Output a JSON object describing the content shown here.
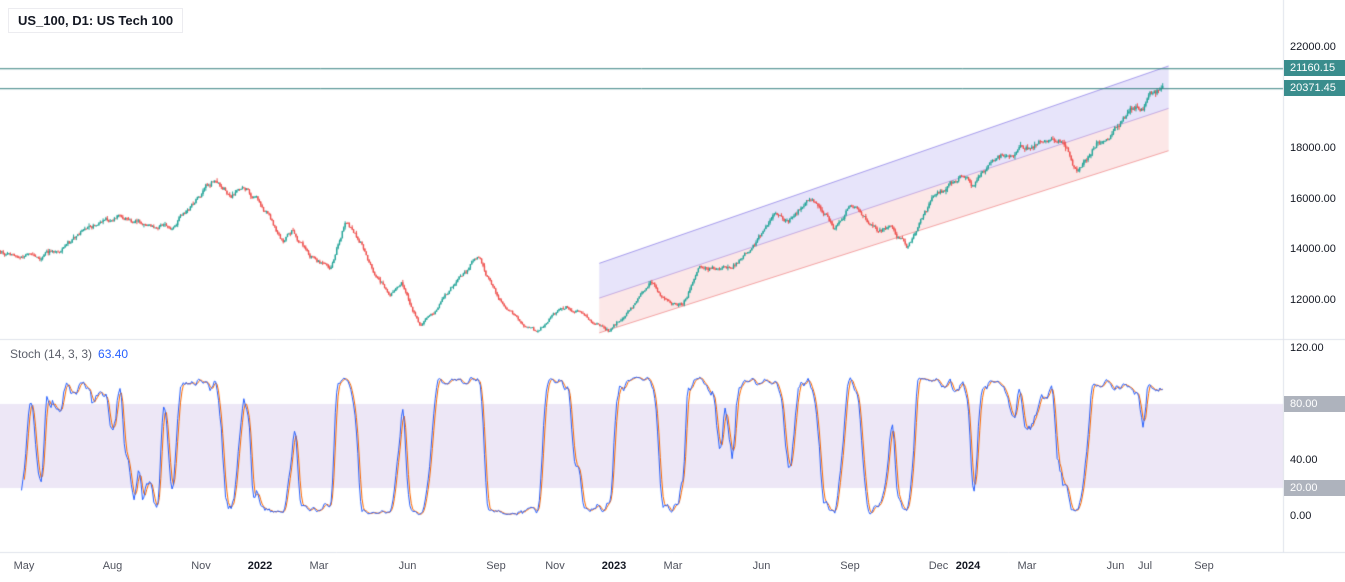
{
  "legend": {
    "title": "US_100, D1: US Tech 100"
  },
  "stoch_legend": {
    "label": "Stoch (14, 3, 3)",
    "value": "63.40"
  },
  "colors": {
    "background": "#ffffff",
    "up_candle": "#26a69a",
    "down_candle": "#ef5350",
    "hline": "#35807f",
    "hline_badge_bg": "#3a8d8d",
    "gray_badge_bg": "#aeb3bd",
    "channel_upper_fill": "rgba(106,90,224,0.16)",
    "channel_lower_fill": "rgba(233,88,88,0.14)",
    "channel_upper_line": "rgba(106,90,224,0.55)",
    "channel_lower_line": "rgba(233,88,88,0.50)",
    "channel_median_line": "rgba(140,100,210,0.45)",
    "stoch_k": "#2962ff",
    "stoch_d": "#ff6d00",
    "stoch_band": "rgba(126,87,194,0.14)",
    "stoch_value_color": "#2962ff",
    "separator": "#e0e3eb",
    "axis_text": "#131722"
  },
  "chart_data": {
    "type": "candlestick",
    "title": "US_100, D1: US Tech 100",
    "symbol": "US_100",
    "interval": "D1",
    "market": "US Tech 100",
    "grid": "off",
    "legend_position": "top-left",
    "price_axis": {
      "visible_range": [
        10400,
        23850
      ],
      "ticks": [
        {
          "value": 22000,
          "label": "22000.00"
        },
        {
          "value": 18000,
          "label": "18000.00"
        },
        {
          "value": 16000,
          "label": "16000.00"
        },
        {
          "value": 14000,
          "label": "14000.00"
        },
        {
          "value": 12000,
          "label": "12000.00"
        }
      ]
    },
    "horizontal_lines": [
      {
        "value": 21160.15,
        "label": "21160.15"
      },
      {
        "value": 20371.45,
        "label": "20371.45"
      }
    ],
    "time_axis": {
      "m_unit": "months since 2021-05",
      "ticks": [
        {
          "label": "May",
          "m": 0
        },
        {
          "label": "Aug",
          "m": 3
        },
        {
          "label": "Nov",
          "m": 6
        },
        {
          "label": "2022",
          "m": 8,
          "year": true
        },
        {
          "label": "Mar",
          "m": 10
        },
        {
          "label": "Jun",
          "m": 13
        },
        {
          "label": "Sep",
          "m": 16
        },
        {
          "label": "Nov",
          "m": 18
        },
        {
          "label": "2023",
          "m": 20,
          "year": true
        },
        {
          "label": "Mar",
          "m": 22
        },
        {
          "label": "Jun",
          "m": 25
        },
        {
          "label": "Sep",
          "m": 28
        },
        {
          "label": "Dec",
          "m": 31
        },
        {
          "label": "2024",
          "m": 32,
          "year": true
        },
        {
          "label": "Mar",
          "m": 34
        },
        {
          "label": "Jun",
          "m": 37
        },
        {
          "label": "Jul",
          "m": 38
        },
        {
          "label": "Sep",
          "m": 40
        }
      ]
    },
    "price_path_anchors": [
      [
        -0.8,
        13950
      ],
      [
        0,
        13550
      ],
      [
        0.7,
        13750
      ],
      [
        1.5,
        14250
      ],
      [
        2.5,
        15000
      ],
      [
        3.3,
        15350
      ],
      [
        4.4,
        14780
      ],
      [
        5,
        14900
      ],
      [
        5.8,
        15850
      ],
      [
        6.4,
        16720
      ],
      [
        7,
        16150
      ],
      [
        7.6,
        16350
      ],
      [
        8.3,
        15400
      ],
      [
        8.8,
        14260
      ],
      [
        9.1,
        14700
      ],
      [
        9.7,
        13750
      ],
      [
        10.4,
        13250
      ],
      [
        10.9,
        15150
      ],
      [
        11.4,
        14400
      ],
      [
        11.9,
        12900
      ],
      [
        12.4,
        12250
      ],
      [
        12.8,
        12700
      ],
      [
        13.4,
        11100
      ],
      [
        13.9,
        11500
      ],
      [
        14.8,
        12900
      ],
      [
        15.4,
        13700
      ],
      [
        15.9,
        12480
      ],
      [
        16.8,
        11100
      ],
      [
        17.4,
        10650
      ],
      [
        17.9,
        11350
      ],
      [
        18.4,
        11750
      ],
      [
        18.9,
        11550
      ],
      [
        19.8,
        10780
      ],
      [
        20.8,
        11950
      ],
      [
        21.2,
        12750
      ],
      [
        21.8,
        12050
      ],
      [
        22.3,
        11800
      ],
      [
        22.9,
        13150
      ],
      [
        23.8,
        13200
      ],
      [
        24.8,
        14200
      ],
      [
        25.4,
        15150
      ],
      [
        25.9,
        15050
      ],
      [
        26.5,
        15900
      ],
      [
        26.9,
        15720
      ],
      [
        27.5,
        14820
      ],
      [
        27.9,
        15480
      ],
      [
        28.2,
        15600
      ],
      [
        28.9,
        14700
      ],
      [
        29.4,
        14950
      ],
      [
        29.95,
        14100
      ],
      [
        30.8,
        15950
      ],
      [
        31.9,
        16850
      ],
      [
        32.2,
        16550
      ],
      [
        32.9,
        17620
      ],
      [
        33.9,
        17990
      ],
      [
        34.4,
        18330
      ],
      [
        34.9,
        18250
      ],
      [
        35.1,
        18400
      ],
      [
        35.7,
        17040
      ],
      [
        36.4,
        18250
      ],
      [
        36.9,
        18650
      ],
      [
        37.5,
        19550
      ],
      [
        37.9,
        19680
      ],
      [
        38.3,
        20100
      ],
      [
        38.6,
        20371.45
      ]
    ],
    "channel": {
      "type": "parallel-channel",
      "m_start": 19.5,
      "m_end": 38.8,
      "top_start": 13450,
      "top_end": 21250,
      "bottom_start": 10700,
      "bottom_end": 17900
    },
    "stochastic": {
      "label": "Stoch (14, 3, 3)",
      "current_value": 63.4,
      "k_period": 14,
      "k_smoothing": 3,
      "d_period": 3,
      "band": [
        20,
        80
      ],
      "axis_ticks": [
        {
          "value": 120,
          "label": "120.00"
        },
        {
          "value": 40,
          "label": "40.00"
        },
        {
          "value": 0,
          "label": "0.00"
        }
      ],
      "badge_ticks": [
        {
          "value": 80,
          "label": "80.00"
        },
        {
          "value": 20,
          "label": "20.00"
        }
      ]
    },
    "render": {
      "seed": 9,
      "candles_per_month": 21,
      "m_min": -0.8,
      "m_max": 38.6
    }
  }
}
